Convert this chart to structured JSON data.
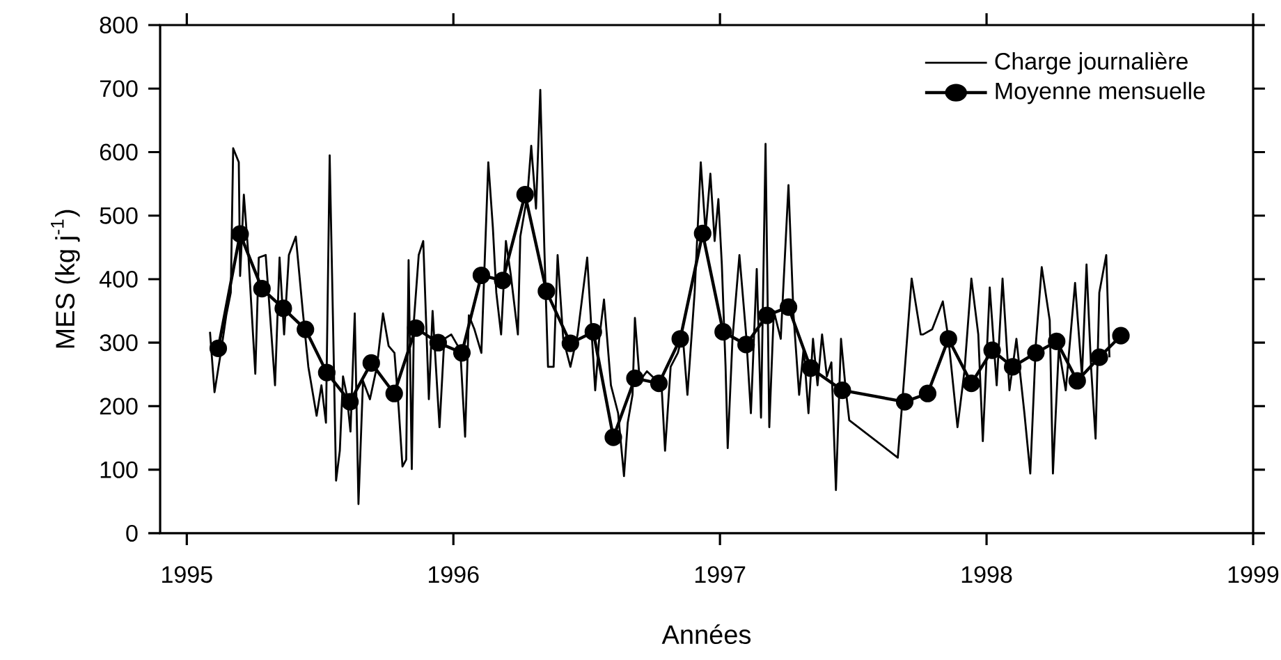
{
  "chart_data": {
    "type": "line",
    "xlabel": "Années",
    "ylabel": "MES (kg j$^{-1}$)",
    "xlim": [
      1994.9,
      1999
    ],
    "ylim": [
      0,
      800
    ],
    "xticks": [
      1995,
      1996,
      1997,
      1998,
      1999
    ],
    "yticks": [
      0,
      100,
      200,
      300,
      400,
      500,
      600,
      700,
      800
    ],
    "legend": "top right",
    "grid": false,
    "series": [
      {
        "name": "Charge journalière",
        "color": "#000000",
        "marker": "none",
        "x": [
          1995.087,
          1995.104,
          1995.13,
          1995.148,
          1995.165,
          1995.174,
          1995.195,
          1995.2,
          1995.214,
          1995.231,
          1995.257,
          1995.27,
          1995.296,
          1995.31,
          1995.331,
          1995.348,
          1995.365,
          1995.383,
          1995.409,
          1995.435,
          1995.456,
          1995.487,
          1995.505,
          1995.522,
          1995.536,
          1995.548,
          1995.56,
          1995.574,
          1995.586,
          1995.6,
          1995.614,
          1995.63,
          1995.644,
          1995.661,
          1995.687,
          1995.713,
          1995.736,
          1995.757,
          1995.779,
          1995.795,
          1995.809,
          1995.823,
          1995.832,
          1995.844,
          1995.852,
          1995.87,
          1995.887,
          1995.908,
          1995.922,
          1995.948,
          1995.966,
          1995.992,
          1996.026,
          1996.044,
          1996.058,
          1996.079,
          1996.105,
          1996.131,
          1996.148,
          1996.161,
          1996.179,
          1996.197,
          1996.215,
          1996.242,
          1996.251,
          1996.278,
          1996.292,
          1996.31,
          1996.326,
          1996.341,
          1996.355,
          1996.376,
          1996.391,
          1996.412,
          1996.439,
          1996.466,
          1996.502,
          1996.52,
          1996.532,
          1996.547,
          1996.565,
          1996.591,
          1996.618,
          1996.64,
          1996.654,
          1996.672,
          1996.681,
          1996.699,
          1996.726,
          1996.753,
          1996.78,
          1996.794,
          1996.815,
          1996.842,
          1996.86,
          1996.878,
          1996.905,
          1996.928,
          1996.946,
          1996.964,
          1996.98,
          1996.994,
          1997.007,
          1997.021,
          1997.029,
          1997.047,
          1997.073,
          1997.098,
          1997.116,
          1997.138,
          1997.154,
          1997.171,
          1997.185,
          1997.202,
          1997.228,
          1997.257,
          1997.276,
          1997.297,
          1997.314,
          1997.332,
          1997.349,
          1997.366,
          1997.383,
          1997.401,
          1997.418,
          1997.435,
          1997.454,
          1997.472,
          1997.485,
          1997.667,
          1997.684,
          1997.719,
          1997.753,
          1997.762,
          1997.796,
          1997.836,
          1997.857,
          1997.891,
          1997.917,
          1997.943,
          1997.969,
          1997.986,
          1998.012,
          1998.038,
          1998.06,
          1998.086,
          1998.112,
          1998.142,
          1998.164,
          1998.185,
          1998.207,
          1998.237,
          1998.249,
          1998.271,
          1998.297,
          1998.332,
          1998.358,
          1998.375,
          1998.392,
          1998.409,
          1998.423,
          1998.449,
          1998.461
        ],
        "values": [
          317,
          222,
          291,
          343,
          379,
          606,
          584,
          405,
          533,
          438,
          251,
          434,
          438,
          357,
          233,
          434,
          313,
          438,
          467,
          350,
          262,
          185,
          233,
          174,
          595,
          343,
          83,
          130,
          247,
          218,
          160,
          346,
          46,
          240,
          211,
          262,
          346,
          295,
          284,
          196,
          105,
          116,
          430,
          101,
          335,
          438,
          460,
          211,
          350,
          167,
          306,
          313,
          288,
          152,
          343,
          321,
          284,
          584,
          482,
          379,
          313,
          460,
          408,
          313,
          467,
          533,
          610,
          511,
          698,
          452,
          262,
          262,
          438,
          306,
          262,
          313,
          434,
          306,
          225,
          306,
          368,
          233,
          189,
          90,
          174,
          218,
          339,
          240,
          255,
          244,
          240,
          130,
          262,
          284,
          313,
          218,
          379,
          584,
          474,
          566,
          460,
          526,
          423,
          262,
          134,
          306,
          438,
          313,
          189,
          416,
          182,
          613,
          167,
          350,
          306,
          548,
          343,
          218,
          291,
          189,
          306,
          233,
          313,
          247,
          269,
          68,
          306,
          225,
          178,
          119,
          207,
          401,
          313,
          313,
          321,
          365,
          306,
          167,
          255,
          401,
          313,
          145,
          387,
          233,
          401,
          225,
          306,
          189,
          94,
          299,
          419,
          335,
          94,
          291,
          225,
          394,
          247,
          423,
          262,
          149,
          379,
          438,
          277
        ]
      },
      {
        "name": "Moyenne mensuelle",
        "color": "#000000",
        "marker": "circle",
        "x": [
          1995.118,
          1995.2,
          1995.282,
          1995.362,
          1995.445,
          1995.525,
          1995.612,
          1995.692,
          1995.778,
          1995.859,
          1995.943,
          1996.032,
          1996.105,
          1996.185,
          1996.269,
          1996.349,
          1996.439,
          1996.525,
          1996.6,
          1996.681,
          1996.771,
          1996.851,
          1996.935,
          1997.012,
          1997.098,
          1997.176,
          1997.257,
          1997.34,
          1997.459,
          1997.693,
          1997.779,
          1997.857,
          1997.943,
          1998.021,
          1998.098,
          1998.185,
          1998.263,
          1998.34,
          1998.423,
          1998.504
        ],
        "values": [
          291,
          471,
          385,
          354,
          321,
          253,
          207,
          268,
          220,
          323,
          300,
          284,
          406,
          398,
          533,
          381,
          299,
          317,
          151,
          244,
          236,
          306,
          472,
          317,
          297,
          343,
          356,
          260,
          225,
          207,
          220,
          306,
          236,
          288,
          262,
          284,
          302,
          240,
          277,
          311
        ]
      }
    ]
  }
}
